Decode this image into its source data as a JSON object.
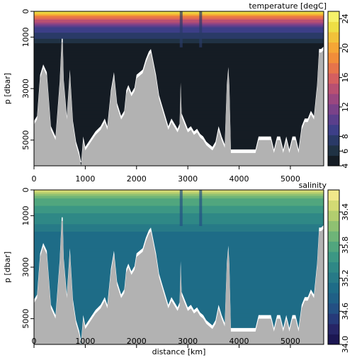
{
  "chart_data": [
    {
      "type": "heatmap",
      "title": "temperature [degC]",
      "ylabel": "p [dbar]",
      "xlabel": "",
      "x_ticks": [
        0,
        1000,
        2000,
        3000,
        4000,
        5000
      ],
      "y_ticks": [
        0,
        1000,
        3000,
        5000
      ],
      "y_reversed": true,
      "xlim": [
        0,
        5650
      ],
      "ylim": [
        6000,
        0
      ],
      "colorbar_ticks": [
        4,
        6,
        8,
        12,
        16,
        20,
        24
      ],
      "colorbar_range": [
        4,
        25
      ],
      "colormap": [
        "#151c24",
        "#203244",
        "#2a3a67",
        "#3d3f88",
        "#5a3f8c",
        "#7a4289",
        "#9a4780",
        "#b85072",
        "#d45f60",
        "#e6744b",
        "#f18d3a",
        "#f5a636",
        "#f2c23a",
        "#eedf45",
        "#f6f26a"
      ],
      "depth_bands": [
        {
          "min": 17,
          "max": 24,
          "top": 0,
          "bottom": 250
        },
        {
          "min": 10,
          "max": 17,
          "top": 250,
          "bottom": 600
        },
        {
          "min": 7,
          "max": 10,
          "top": 600,
          "bottom": 1000
        },
        {
          "min": 4.5,
          "max": 7,
          "top": 1000,
          "bottom": 1400
        },
        {
          "min": 4,
          "max": 4.5,
          "top": 1400,
          "bottom": 6000
        }
      ]
    },
    {
      "type": "heatmap",
      "title": "salinity",
      "ylabel": "p [dbar]",
      "xlabel": "distance [km]",
      "x_ticks": [
        0,
        1000,
        2000,
        3000,
        4000,
        5000
      ],
      "y_ticks": [
        0,
        1000,
        3000,
        5000
      ],
      "y_reversed": true,
      "xlim": [
        0,
        5650
      ],
      "ylim": [
        6000,
        0
      ],
      "colorbar_ticks": [
        "34.0",
        "34.6",
        "35.2",
        "35.8",
        "36.4"
      ],
      "colorbar_range": [
        34.0,
        36.8
      ],
      "colormap": [
        "#1c1753",
        "#262566",
        "#263a79",
        "#235083",
        "#1f6086",
        "#1e6c87",
        "#277a87",
        "#2f8886",
        "#3c9784",
        "#51a67e",
        "#6eb478",
        "#8fc172",
        "#b2cd6f",
        "#d3da74",
        "#f1e88a"
      ],
      "depth_bands": [
        {
          "min": 35.9,
          "max": 36.7,
          "top": 0,
          "bottom": 300
        },
        {
          "min": 35.5,
          "max": 35.9,
          "top": 300,
          "bottom": 900
        },
        {
          "min": 35.1,
          "max": 35.5,
          "top": 900,
          "bottom": 1700
        },
        {
          "min": 34.95,
          "max": 35.1,
          "top": 1700,
          "bottom": 6000
        }
      ]
    }
  ],
  "bathymetry": {
    "x": [
      0,
      60,
      120,
      180,
      250,
      330,
      420,
      500,
      540,
      560,
      580,
      640,
      700,
      760,
      820,
      880,
      920,
      960,
      1000,
      1100,
      1200,
      1300,
      1380,
      1430,
      1500,
      1560,
      1620,
      1700,
      1760,
      1800,
      1840,
      1900,
      1960,
      2000,
      2060,
      2120,
      2180,
      2240,
      2280,
      2320,
      2380,
      2440,
      2500,
      2560,
      2620,
      2680,
      2740,
      2800,
      2840,
      2860,
      2880,
      2940,
      3000,
      3060,
      3120,
      3180,
      3240,
      3300,
      3360,
      3420,
      3480,
      3540,
      3600,
      3660,
      3720,
      3760,
      3790,
      3810,
      3840,
      3900,
      3960,
      4020,
      4080,
      4140,
      4200,
      4260,
      4320,
      4380,
      4440,
      4500,
      4560,
      4620,
      4680,
      4740,
      4800,
      4860,
      4920,
      4980,
      5040,
      5100,
      5160,
      5220,
      5280,
      5340,
      5400,
      5460,
      5520,
      5560,
      5600,
      5650
    ],
    "depth": [
      4400,
      4200,
      2600,
      2200,
      2500,
      4600,
      5000,
      2900,
      1200,
      1200,
      2800,
      4200,
      2400,
      4400,
      5200,
      5600,
      6000,
      5000,
      5400,
      5100,
      4800,
      4600,
      4300,
      4600,
      3200,
      2500,
      3700,
      4200,
      4000,
      3200,
      3000,
      3300,
      3100,
      2600,
      2500,
      2400,
      2000,
      1700,
      1600,
      2000,
      2600,
      3400,
      3800,
      4200,
      4600,
      4300,
      4500,
      4700,
      4500,
      2900,
      4100,
      4400,
      4700,
      4600,
      4800,
      4700,
      4900,
      5000,
      5200,
      5300,
      5400,
      5200,
      4600,
      5000,
      5300,
      3000,
      2300,
      3000,
      5500,
      5500,
      5500,
      5500,
      5500,
      5500,
      5500,
      5500,
      5500,
      5000,
      5000,
      5000,
      5000,
      5000,
      5500,
      5000,
      5000,
      5500,
      5000,
      5500,
      5000,
      5000,
      5500,
      4600,
      4300,
      4300,
      4000,
      4200,
      3000,
      1600,
      1600,
      1500
    ]
  }
}
